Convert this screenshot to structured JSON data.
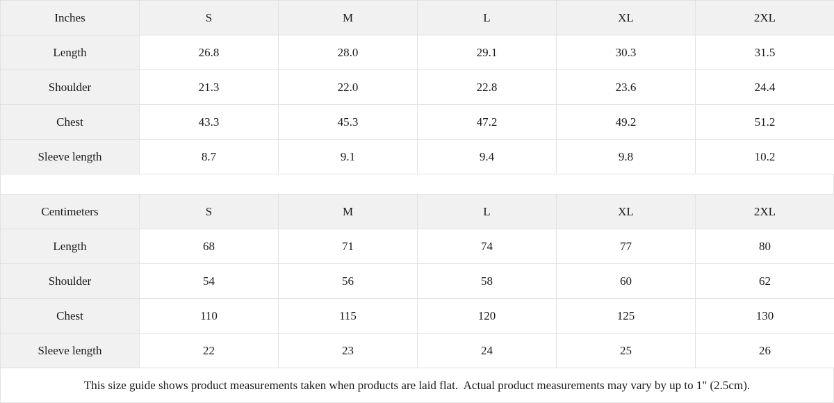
{
  "colors": {
    "header_bg": "#f1f1f1",
    "grid_border": "#e1e1e1",
    "text": "#1a1a1a",
    "cell_bg": "#ffffff"
  },
  "tables": [
    {
      "unit_label": "Inches",
      "sizes": [
        "S",
        "M",
        "L",
        "XL",
        "2XL"
      ],
      "rows": [
        {
          "label": "Length",
          "values": [
            "26.8",
            "28.0",
            "29.1",
            "30.3",
            "31.5"
          ]
        },
        {
          "label": "Shoulder",
          "values": [
            "21.3",
            "22.0",
            "22.8",
            "23.6",
            "24.4"
          ]
        },
        {
          "label": "Chest",
          "values": [
            "43.3",
            "45.3",
            "47.2",
            "49.2",
            "51.2"
          ]
        },
        {
          "label": "Sleeve length",
          "values": [
            "8.7",
            "9.1",
            "9.4",
            "9.8",
            "10.2"
          ]
        }
      ]
    },
    {
      "unit_label": "Centimeters",
      "sizes": [
        "S",
        "M",
        "L",
        "XL",
        "2XL"
      ],
      "rows": [
        {
          "label": "Length",
          "values": [
            "68",
            "71",
            "74",
            "77",
            "80"
          ]
        },
        {
          "label": "Shoulder",
          "values": [
            "54",
            "56",
            "58",
            "60",
            "62"
          ]
        },
        {
          "label": "Chest",
          "values": [
            "110",
            "115",
            "120",
            "125",
            "130"
          ]
        },
        {
          "label": "Sleeve length",
          "values": [
            "22",
            "23",
            "24",
            "25",
            "26"
          ]
        }
      ]
    }
  ],
  "footer": {
    "note": "This size guide shows product measurements taken when products are laid flat.  Actual product measurements may vary by up to 1\" (2.5cm)."
  }
}
